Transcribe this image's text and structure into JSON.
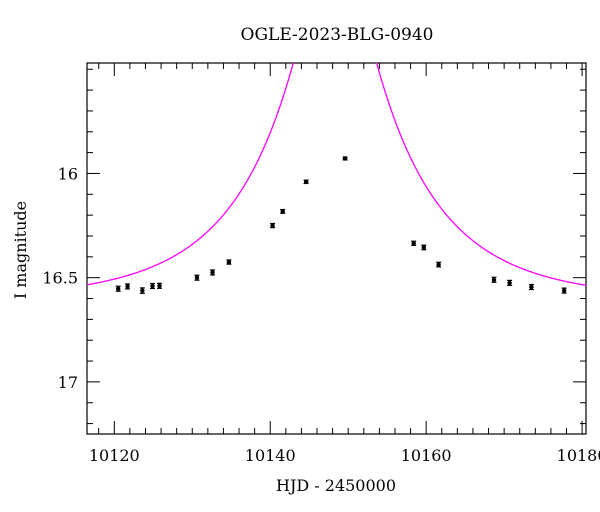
{
  "chart_data": {
    "type": "scatter",
    "title": "OGLE-2023-BLG-0940",
    "xlabel": "HJD - 2450000",
    "ylabel": "I magnitude",
    "xlim": [
      10116.5,
      10180.5
    ],
    "ylim": [
      17.25,
      15.47
    ],
    "y_inverted": true,
    "x_ticks": [
      10120,
      10140,
      10160,
      10180
    ],
    "x_tick_labels": [
      "10120",
      "10140",
      "10160",
      "10180"
    ],
    "y_ticks": [
      16,
      16.5,
      17
    ],
    "y_tick_labels": [
      "16",
      "16.5",
      "17"
    ],
    "x_minor_step": 2,
    "y_minor_step": 0.1,
    "grid": false,
    "series": [
      {
        "kind": "points",
        "color": "#000000",
        "points": [
          {
            "x": 10120.5,
            "y": 16.553,
            "err": 0.012
          },
          {
            "x": 10121.7,
            "y": 16.542,
            "err": 0.012
          },
          {
            "x": 10123.6,
            "y": 16.562,
            "err": 0.013
          },
          {
            "x": 10124.9,
            "y": 16.54,
            "err": 0.012
          },
          {
            "x": 10125.8,
            "y": 16.539,
            "err": 0.012
          },
          {
            "x": 10130.6,
            "y": 16.5,
            "err": 0.012
          },
          {
            "x": 10132.6,
            "y": 16.475,
            "err": 0.012
          },
          {
            "x": 10134.7,
            "y": 16.425,
            "err": 0.01
          },
          {
            "x": 10140.3,
            "y": 16.25,
            "err": 0.01
          },
          {
            "x": 10141.6,
            "y": 16.182,
            "err": 0.009
          },
          {
            "x": 10144.6,
            "y": 16.04,
            "err": 0.008
          },
          {
            "x": 10149.6,
            "y": 15.928,
            "err": 0.007
          },
          {
            "x": 10158.4,
            "y": 16.335,
            "err": 0.01
          },
          {
            "x": 10159.7,
            "y": 16.355,
            "err": 0.011
          },
          {
            "x": 10161.6,
            "y": 16.437,
            "err": 0.011
          },
          {
            "x": 10168.7,
            "y": 16.51,
            "err": 0.012
          },
          {
            "x": 10170.7,
            "y": 16.525,
            "err": 0.012
          },
          {
            "x": 10173.5,
            "y": 16.545,
            "err": 0.012
          },
          {
            "x": 10177.7,
            "y": 16.562,
            "err": 0.012
          }
        ]
      },
      {
        "kind": "model",
        "color": "#ff00ff",
        "model": {
          "t0": 10148.3,
          "u0": 0.19,
          "tE": 17.0,
          "I_base": 16.61
        }
      }
    ]
  }
}
